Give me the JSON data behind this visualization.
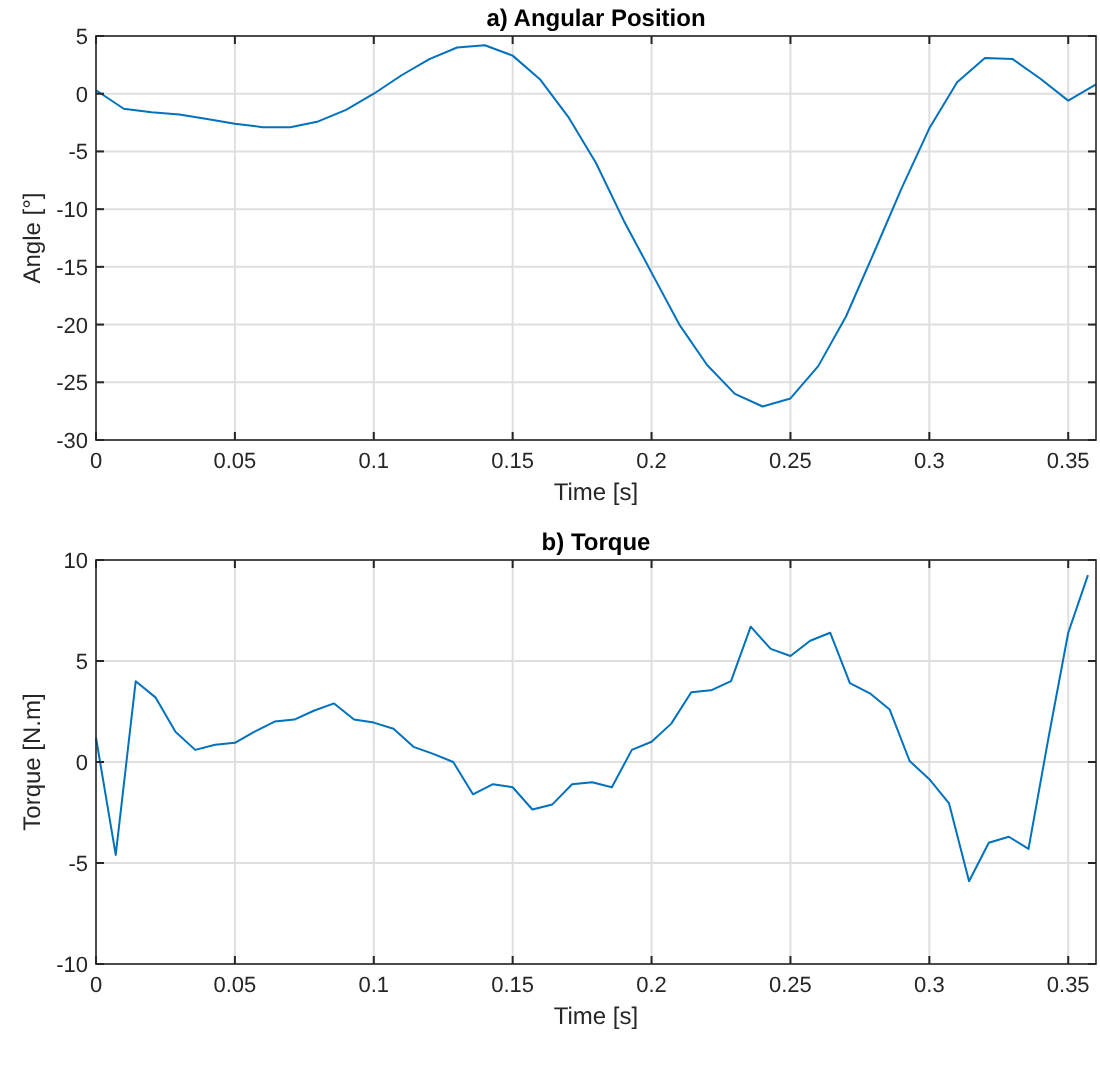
{
  "chart_data": [
    {
      "type": "line",
      "title": "a) Angular Position",
      "xlabel": "Time [s]",
      "ylabel": "Angle [°]",
      "x": [
        0,
        0.01,
        0.02,
        0.03,
        0.04,
        0.05,
        0.06,
        0.07,
        0.08,
        0.09,
        0.1,
        0.11,
        0.12,
        0.13,
        0.14,
        0.15,
        0.16,
        0.17,
        0.18,
        0.19,
        0.2,
        0.21,
        0.22,
        0.23,
        0.24,
        0.25,
        0.26,
        0.27,
        0.28,
        0.29,
        0.3,
        0.31,
        0.32,
        0.33,
        0.34,
        0.35,
        0.36
      ],
      "series": [
        {
          "color": "#0072bd",
          "values": [
            0.3,
            -1.3,
            -1.6,
            -1.8,
            -2.2,
            -2.6,
            -2.9,
            -2.9,
            -2.4,
            -1.4,
            0,
            1.6,
            3.0,
            4.0,
            4.2,
            3.3,
            1.2,
            -2.0,
            -6,
            -11,
            -15.5,
            -20,
            -23.5,
            -26,
            -27.1,
            -26.4,
            -23.6,
            -19.3,
            -13.8,
            -8.2,
            -3,
            1,
            3.1,
            3.0,
            1.3,
            -0.6,
            0.8
          ]
        }
      ],
      "xlim": [
        0,
        0.36
      ],
      "xticks": [
        0,
        0.05,
        0.1,
        0.15,
        0.2,
        0.25,
        0.3,
        0.35
      ],
      "ylim": [
        -30,
        5
      ],
      "yticks": [
        -30,
        -25,
        -20,
        -15,
        -10,
        -5,
        0,
        5
      ],
      "grid": true
    },
    {
      "type": "line",
      "title": "b) Torque",
      "xlabel": "Time [s]",
      "ylabel": "Torque [N.m]",
      "x": [
        0,
        0.0071,
        0.0143,
        0.0214,
        0.0286,
        0.0357,
        0.0429,
        0.05,
        0.0571,
        0.0643,
        0.0714,
        0.0786,
        0.0857,
        0.0929,
        0.1,
        0.1071,
        0.1143,
        0.1214,
        0.1286,
        0.1357,
        0.1429,
        0.15,
        0.1571,
        0.1643,
        0.1714,
        0.1786,
        0.1857,
        0.1929,
        0.2,
        0.2071,
        0.2143,
        0.2214,
        0.2286,
        0.2357,
        0.2429,
        0.25,
        0.2571,
        0.2643,
        0.2714,
        0.2786,
        0.2857,
        0.2929,
        0.3,
        0.3071,
        0.3143,
        0.3214,
        0.3286,
        0.3357,
        0.3429,
        0.35,
        0.3571
      ],
      "series": [
        {
          "color": "#0072bd",
          "values": [
            1.2,
            -4.6,
            4.0,
            3.2,
            1.5,
            0.6,
            0.85,
            0.95,
            1.5,
            2.0,
            2.1,
            2.55,
            2.9,
            2.1,
            1.95,
            1.65,
            0.75,
            0.4,
            0,
            -1.6,
            -1.1,
            -1.25,
            -2.35,
            -2.1,
            -1.1,
            -1.0,
            -1.25,
            0.6,
            1.0,
            1.9,
            3.45,
            3.55,
            4.0,
            6.7,
            5.6,
            5.25,
            6.0,
            6.4,
            3.9,
            3.4,
            2.6,
            0.05,
            -0.85,
            -2.05,
            -5.9,
            -4.0,
            -3.7,
            -4.3,
            1.2,
            6.4,
            9.25
          ]
        }
      ],
      "xlim": [
        0,
        0.36
      ],
      "xticks": [
        0,
        0.05,
        0.1,
        0.15,
        0.2,
        0.25,
        0.3,
        0.35
      ],
      "ylim": [
        -10,
        10
      ],
      "yticks": [
        -10,
        -5,
        0,
        5,
        10
      ],
      "grid": true
    }
  ]
}
